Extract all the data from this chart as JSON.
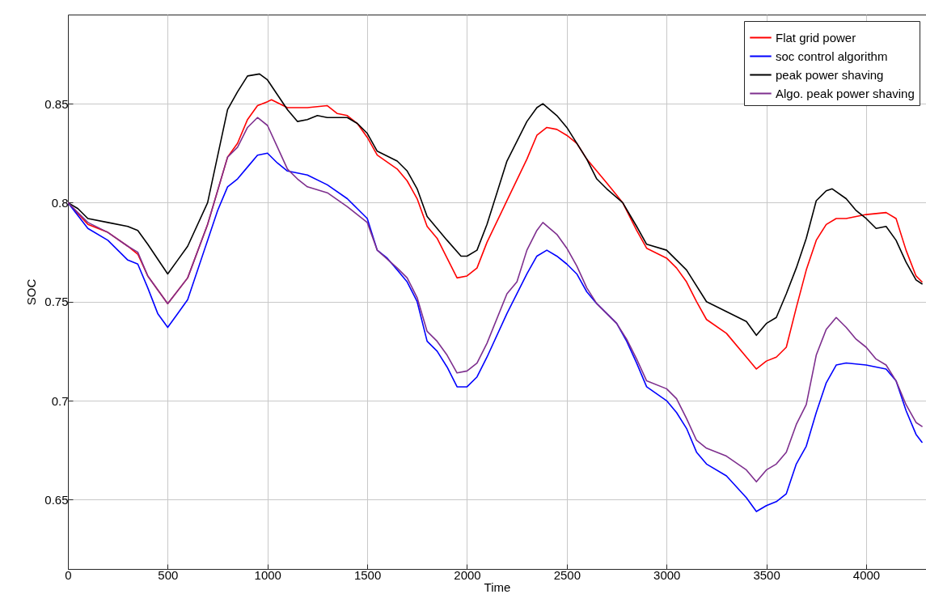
{
  "chart_data": {
    "type": "line",
    "xlabel": "Time",
    "ylabel": "SOC",
    "xlim": [
      0,
      4300
    ],
    "ylim": [
      0.615,
      0.895
    ],
    "xticks": [
      0,
      500,
      1000,
      1500,
      2000,
      2500,
      3000,
      3500,
      4000
    ],
    "yticks": [
      0.65,
      0.7,
      0.75,
      0.8,
      0.85
    ],
    "grid": true,
    "legend": "top right",
    "line_style": "solid",
    "series": [
      {
        "name": "Flat grid power",
        "color": "#ff0000",
        "x": [
          0,
          100,
          200,
          300,
          350,
          400,
          500,
          600,
          700,
          800,
          850,
          900,
          950,
          1000,
          1020,
          1100,
          1200,
          1300,
          1350,
          1400,
          1450,
          1500,
          1550,
          1650,
          1700,
          1750,
          1800,
          1850,
          1900,
          1950,
          2000,
          2050,
          2100,
          2200,
          2300,
          2350,
          2400,
          2450,
          2500,
          2550,
          2600,
          2650,
          2700,
          2780,
          2850,
          2900,
          3000,
          3050,
          3100,
          3150,
          3200,
          3300,
          3400,
          3450,
          3500,
          3550,
          3600,
          3650,
          3700,
          3750,
          3800,
          3850,
          3900,
          4000,
          4100,
          4150,
          4200,
          4250,
          4280
        ],
        "values": [
          0.8,
          0.789,
          0.785,
          0.778,
          0.774,
          0.763,
          0.749,
          0.762,
          0.789,
          0.823,
          0.83,
          0.842,
          0.849,
          0.851,
          0.852,
          0.848,
          0.848,
          0.849,
          0.845,
          0.844,
          0.84,
          0.833,
          0.824,
          0.817,
          0.811,
          0.802,
          0.788,
          0.782,
          0.772,
          0.762,
          0.763,
          0.767,
          0.78,
          0.801,
          0.822,
          0.834,
          0.838,
          0.837,
          0.834,
          0.83,
          0.822,
          0.816,
          0.81,
          0.8,
          0.786,
          0.777,
          0.772,
          0.767,
          0.76,
          0.75,
          0.741,
          0.734,
          0.722,
          0.716,
          0.72,
          0.722,
          0.727,
          0.747,
          0.766,
          0.781,
          0.789,
          0.792,
          0.792,
          0.794,
          0.795,
          0.792,
          0.776,
          0.763,
          0.76
        ]
      },
      {
        "name": "soc control algorithm",
        "color": "#0000ff",
        "x": [
          0,
          100,
          200,
          300,
          350,
          400,
          450,
          500,
          550,
          600,
          700,
          750,
          800,
          850,
          900,
          950,
          1000,
          1050,
          1100,
          1200,
          1300,
          1400,
          1450,
          1500,
          1550,
          1600,
          1650,
          1700,
          1750,
          1800,
          1850,
          1900,
          1950,
          2000,
          2050,
          2100,
          2200,
          2250,
          2300,
          2350,
          2400,
          2450,
          2500,
          2550,
          2600,
          2650,
          2700,
          2750,
          2800,
          2850,
          2900,
          3000,
          3050,
          3100,
          3150,
          3200,
          3300,
          3400,
          3450,
          3500,
          3550,
          3600,
          3650,
          3700,
          3750,
          3800,
          3850,
          3900,
          4000,
          4100,
          4150,
          4200,
          4250,
          4280
        ],
        "values": [
          0.8,
          0.787,
          0.781,
          0.771,
          0.769,
          0.757,
          0.744,
          0.737,
          0.744,
          0.751,
          0.781,
          0.796,
          0.808,
          0.812,
          0.818,
          0.824,
          0.825,
          0.82,
          0.816,
          0.814,
          0.809,
          0.802,
          0.797,
          0.792,
          0.776,
          0.772,
          0.766,
          0.76,
          0.75,
          0.73,
          0.725,
          0.717,
          0.707,
          0.707,
          0.712,
          0.722,
          0.744,
          0.754,
          0.764,
          0.773,
          0.776,
          0.773,
          0.769,
          0.764,
          0.755,
          0.749,
          0.744,
          0.739,
          0.73,
          0.719,
          0.707,
          0.7,
          0.694,
          0.686,
          0.674,
          0.668,
          0.662,
          0.651,
          0.644,
          0.647,
          0.649,
          0.653,
          0.668,
          0.677,
          0.694,
          0.709,
          0.718,
          0.719,
          0.718,
          0.716,
          0.71,
          0.695,
          0.683,
          0.679
        ]
      },
      {
        "name": "peak power shaving",
        "color": "#000000",
        "x": [
          0,
          50,
          100,
          200,
          300,
          350,
          400,
          500,
          550,
          600,
          700,
          800,
          850,
          900,
          960,
          1000,
          1100,
          1150,
          1200,
          1250,
          1300,
          1400,
          1450,
          1500,
          1550,
          1650,
          1700,
          1750,
          1800,
          1900,
          1970,
          2000,
          2050,
          2100,
          2200,
          2250,
          2300,
          2350,
          2380,
          2450,
          2500,
          2600,
          2650,
          2700,
          2780,
          2850,
          2900,
          3000,
          3100,
          3200,
          3300,
          3400,
          3450,
          3500,
          3550,
          3600,
          3650,
          3700,
          3750,
          3800,
          3830,
          3900,
          3950,
          4000,
          4050,
          4100,
          4150,
          4200,
          4250,
          4280
        ],
        "values": [
          0.8,
          0.797,
          0.792,
          0.79,
          0.788,
          0.786,
          0.779,
          0.764,
          0.771,
          0.778,
          0.8,
          0.847,
          0.856,
          0.864,
          0.865,
          0.862,
          0.847,
          0.841,
          0.842,
          0.844,
          0.843,
          0.843,
          0.84,
          0.835,
          0.826,
          0.821,
          0.816,
          0.807,
          0.793,
          0.781,
          0.773,
          0.773,
          0.776,
          0.789,
          0.821,
          0.831,
          0.841,
          0.848,
          0.85,
          0.844,
          0.838,
          0.822,
          0.812,
          0.807,
          0.8,
          0.788,
          0.779,
          0.776,
          0.766,
          0.75,
          0.745,
          0.74,
          0.733,
          0.739,
          0.742,
          0.754,
          0.767,
          0.782,
          0.801,
          0.806,
          0.807,
          0.802,
          0.796,
          0.792,
          0.787,
          0.788,
          0.781,
          0.77,
          0.761,
          0.759
        ]
      },
      {
        "name": "Algo. peak power shaving",
        "color": "#7e2f8e",
        "x": [
          0,
          100,
          200,
          300,
          350,
          400,
          500,
          600,
          700,
          800,
          850,
          900,
          950,
          1000,
          1050,
          1100,
          1150,
          1200,
          1300,
          1400,
          1500,
          1550,
          1650,
          1700,
          1750,
          1800,
          1850,
          1900,
          1950,
          2000,
          2050,
          2100,
          2200,
          2250,
          2300,
          2350,
          2380,
          2450,
          2500,
          2550,
          2600,
          2650,
          2700,
          2750,
          2800,
          2850,
          2900,
          3000,
          3050,
          3100,
          3150,
          3200,
          3300,
          3400,
          3450,
          3500,
          3550,
          3600,
          3650,
          3700,
          3750,
          3800,
          3850,
          3900,
          3950,
          4000,
          4050,
          4100,
          4150,
          4200,
          4250,
          4280
        ],
        "values": [
          0.8,
          0.79,
          0.785,
          0.778,
          0.775,
          0.763,
          0.749,
          0.762,
          0.789,
          0.823,
          0.828,
          0.838,
          0.843,
          0.839,
          0.828,
          0.817,
          0.812,
          0.808,
          0.805,
          0.798,
          0.79,
          0.776,
          0.767,
          0.762,
          0.752,
          0.735,
          0.73,
          0.723,
          0.714,
          0.715,
          0.719,
          0.729,
          0.754,
          0.76,
          0.776,
          0.786,
          0.79,
          0.784,
          0.777,
          0.768,
          0.757,
          0.749,
          0.744,
          0.739,
          0.731,
          0.721,
          0.71,
          0.706,
          0.701,
          0.691,
          0.68,
          0.676,
          0.672,
          0.665,
          0.659,
          0.665,
          0.668,
          0.674,
          0.688,
          0.698,
          0.723,
          0.736,
          0.742,
          0.737,
          0.731,
          0.727,
          0.721,
          0.718,
          0.71,
          0.698,
          0.689,
          0.687
        ]
      }
    ]
  }
}
